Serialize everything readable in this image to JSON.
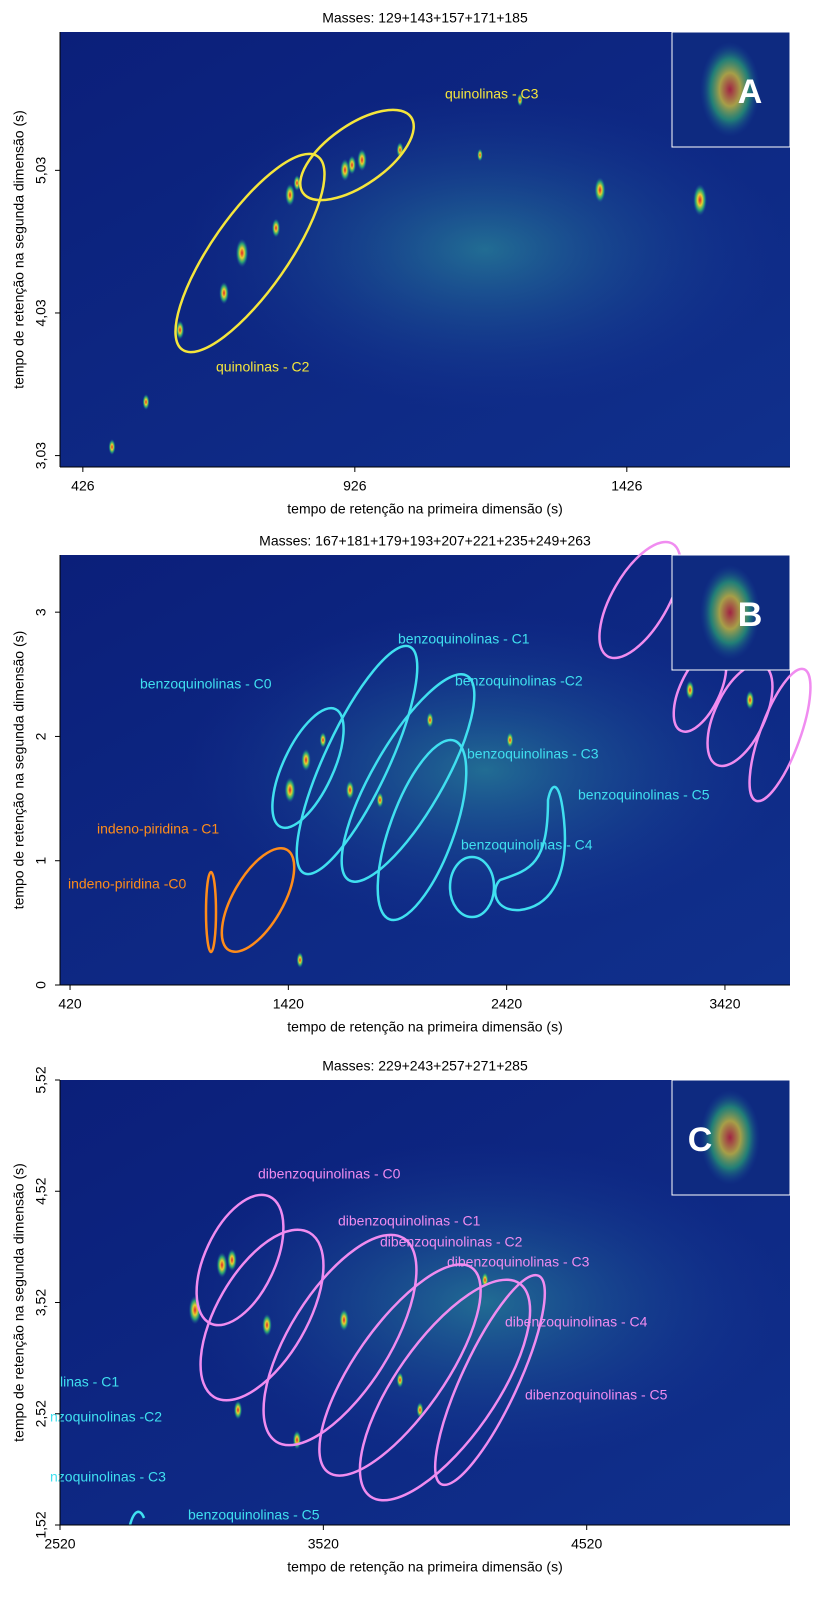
{
  "chart_data": [
    {
      "type": "heatmap",
      "title": "Masses:  129+143+157+171+185",
      "panel_label": "A",
      "xlabel": "tempo de retenção na primeira dimensão (s)",
      "ylabel": "tempo de retenção na segunda dimensão (s)",
      "xlim": [
        384,
        1726
      ],
      "ylim": [
        2.95,
        6.0
      ],
      "xticks": [
        426,
        926,
        1426
      ],
      "yticks": [
        {
          "value": 3.03,
          "label": "3,03"
        },
        {
          "value": 4.03,
          "label": "4,03"
        },
        {
          "value": 5.03,
          "label": "5,03"
        }
      ],
      "annotations": [
        {
          "text": "quinolinas - C3",
          "color": "#f5e63c"
        },
        {
          "text": "quinolinas - C2",
          "color": "#f5e63c"
        }
      ]
    },
    {
      "type": "heatmap",
      "title": "Masses:  167+181+179+193+207+221+235+249+263",
      "panel_label": "B",
      "xlabel": "tempo de retenção na primeira dimensão (s)",
      "ylabel": "tempo de retenção na segunda dimensão (s)",
      "xlim": [
        374,
        3718
      ],
      "ylim": [
        0,
        3.46
      ],
      "xticks": [
        420,
        1420,
        2420,
        3420
      ],
      "yticks": [
        0,
        1,
        2,
        3
      ],
      "annotations": [
        {
          "text": "benzoquinolinas - C1",
          "color": "#40e0f0"
        },
        {
          "text": "benzoquinolinas - C0",
          "color": "#40e0f0"
        },
        {
          "text": "benzoquinolinas -C2",
          "color": "#40e0f0"
        },
        {
          "text": "benzoquinolinas - C3",
          "color": "#40e0f0"
        },
        {
          "text": "benzoquinolinas - C5",
          "color": "#40e0f0"
        },
        {
          "text": "indeno-piridina - C1",
          "color": "#ff8c1a"
        },
        {
          "text": "benzoquinolinas - C4",
          "color": "#40e0f0"
        },
        {
          "text": "indeno-piridina -C0",
          "color": "#ff8c1a"
        }
      ]
    },
    {
      "type": "heatmap",
      "title": "Masses:  229+243+257+271+285",
      "panel_label": "C",
      "xlabel": "tempo de retenção na primeira dimensão (s)",
      "ylabel": "tempo de retenção na segunda dimensão (s)",
      "xlim": [
        2520,
        5292
      ],
      "ylim": [
        1.52,
        5.52
      ],
      "xticks": [
        2520,
        3520,
        4520
      ],
      "yticks": [
        {
          "value": 1.52,
          "label": "1,52"
        },
        {
          "value": 2.52,
          "label": "2,52"
        },
        {
          "value": 3.52,
          "label": "3,52"
        },
        {
          "value": 4.52,
          "label": "4,52"
        },
        {
          "value": 5.52,
          "label": "5,52"
        }
      ],
      "annotations": [
        {
          "text": "dibenzoquinolinas - C0",
          "color": "#f08cf0"
        },
        {
          "text": "dibenzoquinolinas - C1",
          "color": "#f08cf0"
        },
        {
          "text": "dibenzoquinolinas - C2",
          "color": "#f08cf0"
        },
        {
          "text": "dibenzoquinolinas - C3",
          "color": "#f08cf0"
        },
        {
          "text": "dibenzoquinolinas - C4",
          "color": "#f08cf0"
        },
        {
          "text": "dibenzoquinolinas - C5",
          "color": "#f08cf0"
        },
        {
          "text": "linas - C1",
          "color": "#40e0f0"
        },
        {
          "text": "nzoquinolinas -C2",
          "color": "#40e0f0"
        },
        {
          "text": "nzoquinolinas - C3",
          "color": "#40e0f0"
        },
        {
          "text": "benzoquinolinas - C5",
          "color": "#40e0f0"
        }
      ]
    }
  ]
}
